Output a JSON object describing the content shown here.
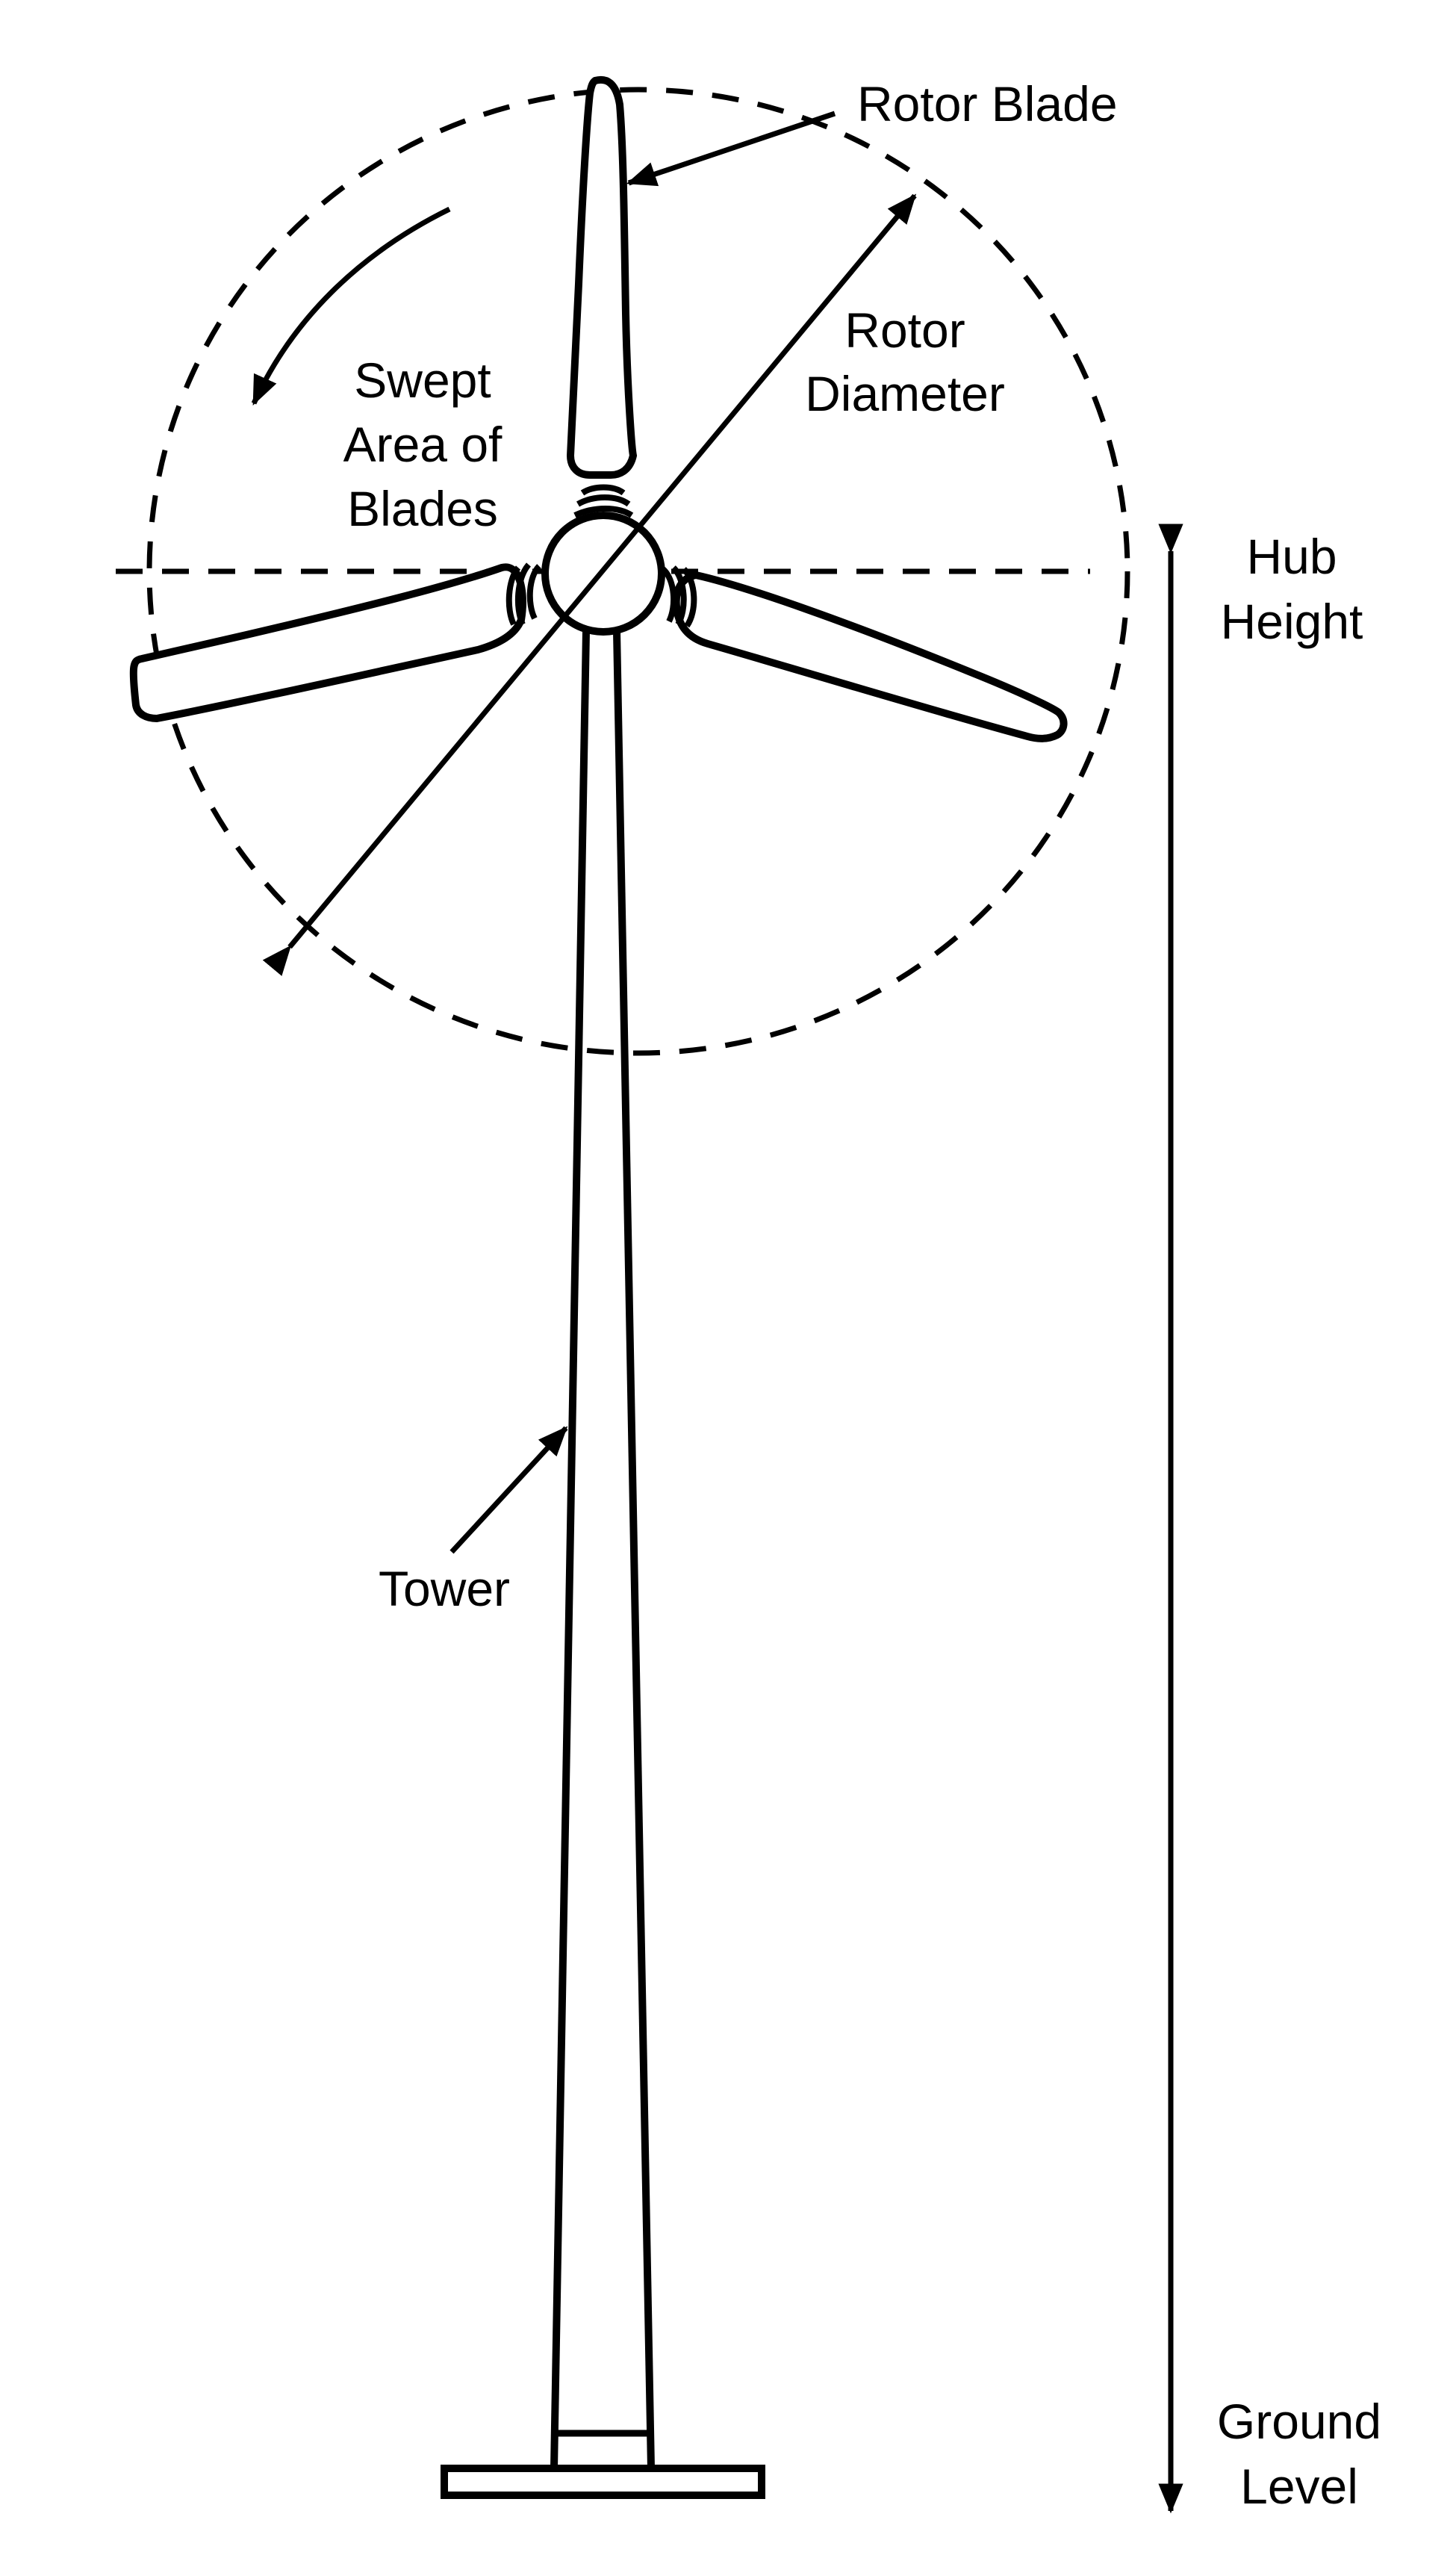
{
  "colors": {
    "ink": "#000000",
    "background": "#ffffff"
  },
  "labels": {
    "rotor_blade": "Rotor Blade",
    "rotor_diameter": [
      "Rotor",
      "Diameter"
    ],
    "swept_area": [
      "Swept",
      "Area of",
      "Blades"
    ],
    "hub_height": [
      "Hub",
      "Height"
    ],
    "tower": "Tower",
    "ground_level": [
      "Ground",
      "Level"
    ]
  }
}
